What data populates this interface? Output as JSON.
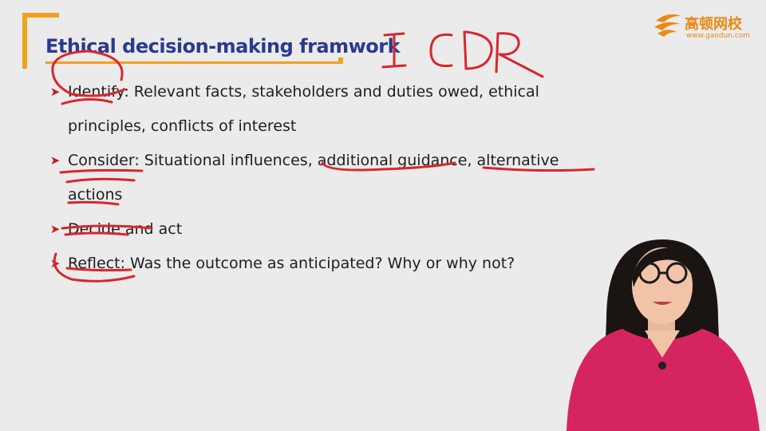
{
  "slide": {
    "title": "Ethical decision-making framwork",
    "logo": {
      "text": "高顿网校",
      "url": "www.gaodun.com"
    },
    "bullets": [
      {
        "lines": [
          "Identify: Relevant facts, stakeholders and duties owed, ethical",
          "principles, conflicts of interest"
        ]
      },
      {
        "lines": [
          "Consider: Situational influences, additional guidance, alternative",
          "actions"
        ]
      },
      {
        "lines": [
          "Decide and act"
        ]
      },
      {
        "lines": [
          "Reflect: Was the outcome as anticipated? Why or why not?"
        ]
      }
    ],
    "annotation_text": "ICDR"
  },
  "colors": {
    "accent": "#f0a11f",
    "title": "#2a3a8f",
    "ink": "#d8262f",
    "arrow": "#c41e1e"
  },
  "icons": {
    "bullet": "chevron-right-icon",
    "logo": "gaodun-logo-icon"
  }
}
